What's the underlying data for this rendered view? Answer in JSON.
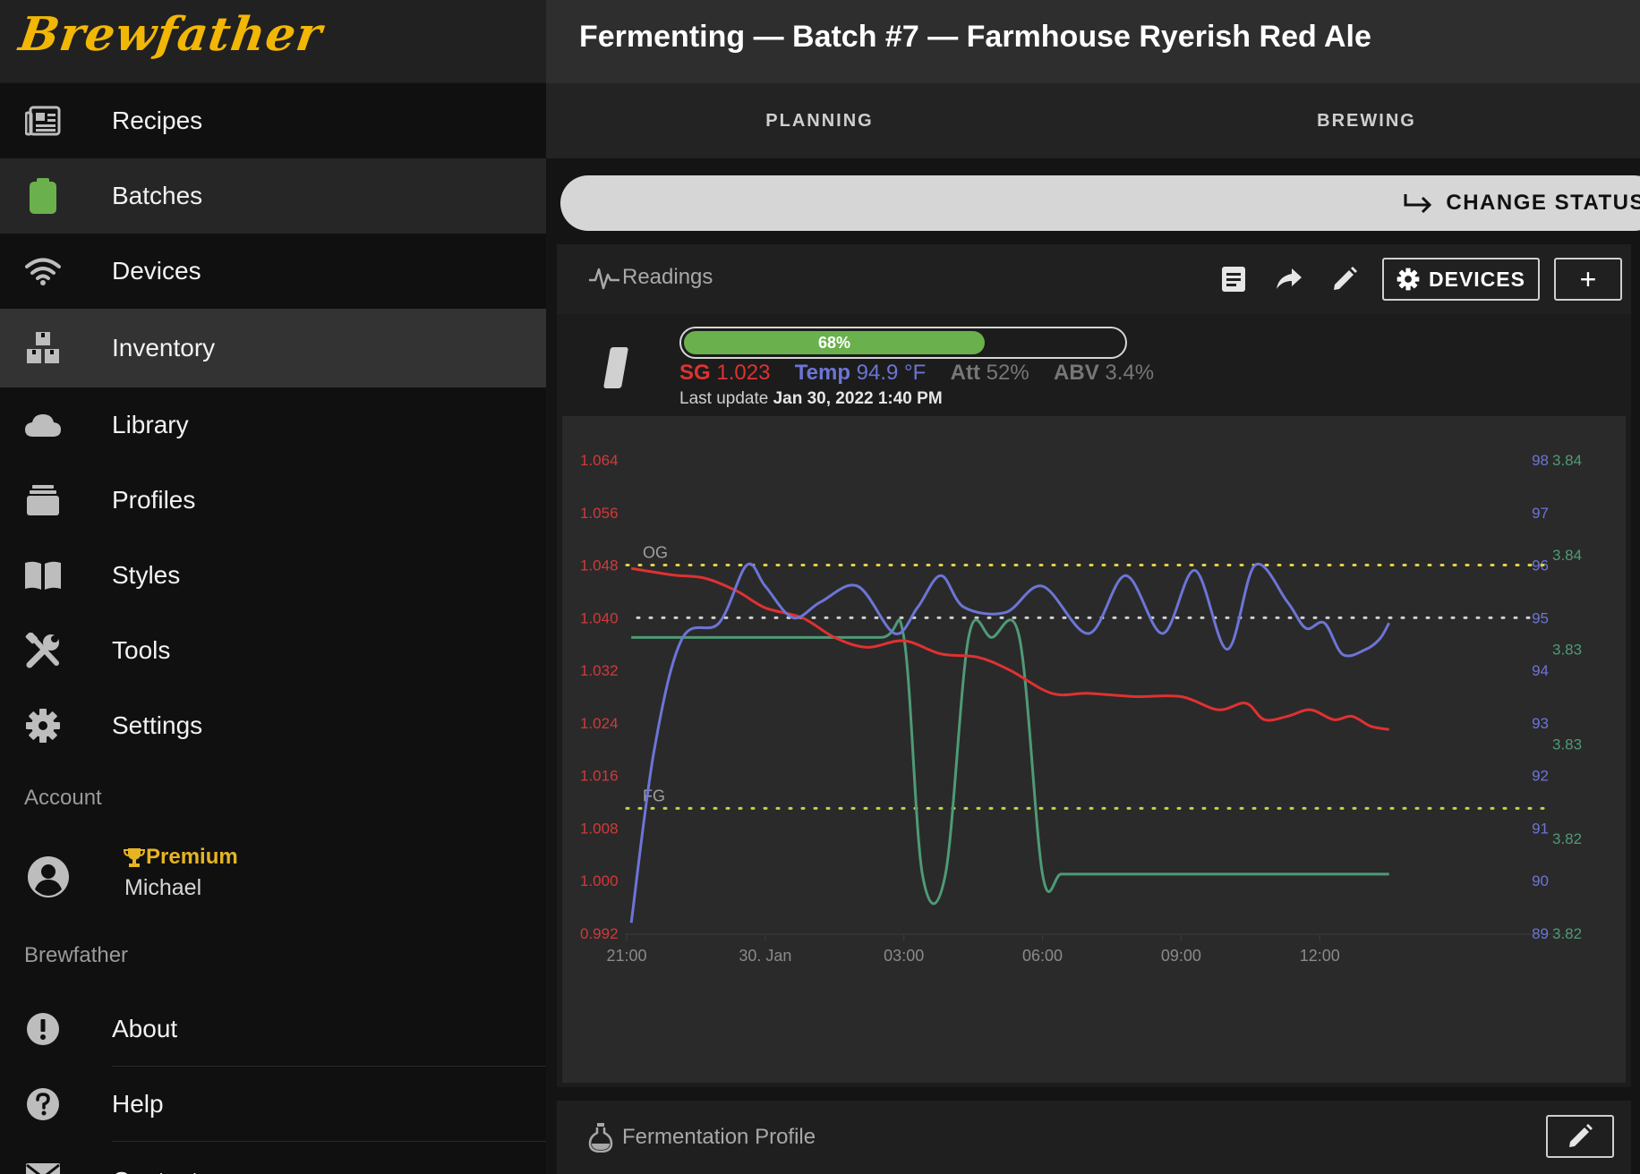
{
  "app": {
    "logo": "Brewfather"
  },
  "sidebar": {
    "items": [
      {
        "label": "Recipes",
        "icon": "recipes-icon"
      },
      {
        "label": "Batches",
        "icon": "clipboard-icon"
      },
      {
        "label": "Devices",
        "icon": "wifi-icon"
      },
      {
        "label": "Inventory",
        "icon": "boxes-icon"
      },
      {
        "label": "Library",
        "icon": "cloud-icon"
      },
      {
        "label": "Profiles",
        "icon": "stack-icon"
      },
      {
        "label": "Styles",
        "icon": "book-icon"
      },
      {
        "label": "Tools",
        "icon": "tools-icon"
      },
      {
        "label": "Settings",
        "icon": "gear-icon"
      }
    ],
    "account_label": "Account",
    "account": {
      "badge": "Premium",
      "name": "Michael"
    },
    "brewfather_label": "Brewfather",
    "bottom_items": [
      {
        "label": "About",
        "icon": "info-icon"
      },
      {
        "label": "Help",
        "icon": "help-icon"
      },
      {
        "label": "Contact",
        "icon": "mail-icon"
      }
    ]
  },
  "header": {
    "title": "Fermenting — Batch #7 — Farmhouse Ryerish Red Ale"
  },
  "tabs": [
    "PLANNING",
    "BREWING"
  ],
  "status": {
    "change_label": "CHANGE STATUS"
  },
  "readings": {
    "title": "Readings",
    "devices_label": "DEVICES",
    "add_label": "+",
    "progress": {
      "percent": 68,
      "label": "68%"
    },
    "sg_label": "SG",
    "sg_value": "1.023",
    "temp_label": "Temp",
    "temp_value": "94.9 °F",
    "att_label": "Att",
    "att_value": "52%",
    "abv_label": "ABV",
    "abv_value": "3.4%",
    "last_update_label": "Last update",
    "last_update_value": "Jan 30, 2022 1:40 PM",
    "colors": {
      "sg": "#e03131",
      "temp": "#6c75d6",
      "third": "#4f9a76",
      "progress": "#6ab04c"
    }
  },
  "chart_data": {
    "type": "line",
    "x_ticks": [
      "21:00",
      "30. Jan",
      "03:00",
      "06:00",
      "09:00",
      "12:00"
    ],
    "x_range": [
      0,
      16.7
    ],
    "y_left_ticks": [
      "1.064",
      "1.056",
      "1.048",
      "1.040",
      "1.032",
      "1.024",
      "1.016",
      "1.008",
      "1.000",
      "0.992"
    ],
    "y_left_range": [
      0.992,
      1.064
    ],
    "y_right_temp_ticks": [
      "98",
      "97",
      "96",
      "95",
      "94",
      "93",
      "92",
      "91",
      "90",
      "89"
    ],
    "y_right_temp_range": [
      89,
      98
    ],
    "y_right_third_ticks": [
      "3.84",
      "3.84",
      "3.83",
      "3.83",
      "3.82",
      "3.82"
    ],
    "y_right_third_range": [
      3.82,
      3.84
    ],
    "annotations": [
      {
        "label": "OG",
        "value": 1.048,
        "color": "#e6d34a"
      },
      {
        "label": "FG",
        "value": 1.011,
        "color": "#b7d94a"
      }
    ],
    "reference_lines": [
      {
        "value": 1.04,
        "color": "#d0d0d0"
      }
    ],
    "series": [
      {
        "axis": "left",
        "color": "#e03131",
        "x": [
          0.1,
          1.0,
          1.7,
          2.4,
          3.0,
          3.8,
          4.5,
          5.2,
          6.0,
          6.8,
          7.6,
          8.3,
          9.2,
          10.0,
          11.0,
          12.0,
          12.8,
          13.4,
          13.8,
          14.3,
          14.8,
          15.3,
          15.7,
          16.1,
          16.5
        ],
        "y": [
          1.0475,
          1.0465,
          1.046,
          1.044,
          1.0415,
          1.04,
          1.037,
          1.0355,
          1.0365,
          1.0345,
          1.034,
          1.032,
          1.0285,
          1.0285,
          1.028,
          1.028,
          1.026,
          1.027,
          1.0245,
          1.025,
          1.026,
          1.0245,
          1.025,
          1.0235,
          1.023
        ]
      },
      {
        "axis": "temp",
        "color": "#6c75d6",
        "x": [
          0.1,
          0.6,
          1.2,
          2.0,
          2.6,
          3.0,
          3.6,
          4.2,
          5.0,
          5.8,
          6.3,
          6.8,
          7.3,
          8.2,
          9.0,
          10.0,
          10.8,
          11.6,
          12.3,
          13.0,
          13.6,
          14.3,
          14.7,
          15.1,
          15.5,
          16.0,
          16.3,
          16.5
        ],
        "y": [
          89.2,
          92.5,
          94.6,
          94.9,
          96.0,
          95.6,
          95.0,
          95.3,
          95.6,
          94.7,
          95.2,
          95.8,
          95.2,
          95.1,
          95.6,
          94.7,
          95.8,
          94.7,
          95.9,
          94.4,
          96.0,
          95.3,
          94.8,
          94.9,
          94.3,
          94.4,
          94.6,
          94.9
        ]
      },
      {
        "axis": "third",
        "color": "#4f9a76",
        "x": [
          0.1,
          1.5,
          3.5,
          5.5,
          6.0,
          6.4,
          6.9,
          7.4,
          7.9,
          8.5,
          9.0,
          9.4,
          9.9,
          11.0,
          13.0,
          16.5
        ],
        "y": [
          3.8325,
          3.8325,
          3.8325,
          3.8325,
          3.8325,
          3.8225,
          3.8225,
          3.8325,
          3.8325,
          3.8325,
          3.8225,
          3.8225,
          3.8225,
          3.8225,
          3.8225,
          3.8225
        ]
      }
    ]
  },
  "fermentation": {
    "title": "Fermentation Profile"
  }
}
